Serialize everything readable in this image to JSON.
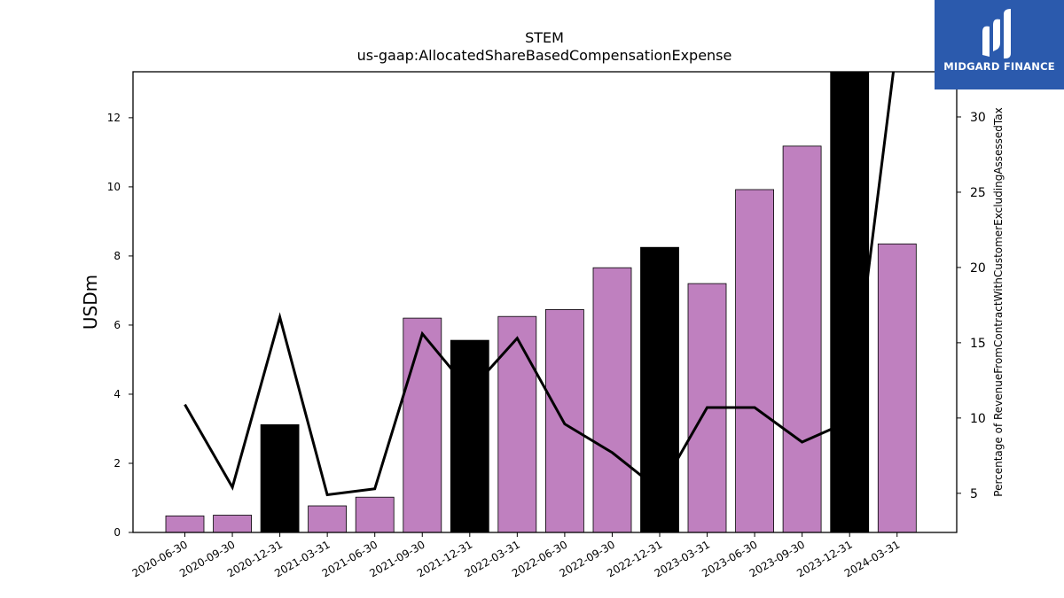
{
  "chart_data": {
    "type": "bar",
    "title": "STEM",
    "subtitle": "us-gaap:AllocatedShareBasedCompensationExpense",
    "ylabel": "USDm",
    "y2label": "Percentage of RevenueFromContractWithCustomerExcludingAssessedTax",
    "categories": [
      "2020-06-30",
      "2020-09-30",
      "2020-12-31",
      "2021-03-31",
      "2021-06-30",
      "2021-09-30",
      "2021-12-31",
      "2022-03-31",
      "2022-06-30",
      "2022-09-30",
      "2022-12-31",
      "2023-03-31",
      "2023-06-30",
      "2023-09-30",
      "2023-12-31",
      "2024-03-31"
    ],
    "series": [
      {
        "values": [
          0.48,
          0.5,
          3.12,
          0.77,
          1.02,
          6.2,
          5.56,
          6.25,
          6.45,
          7.66,
          8.25,
          7.2,
          9.92,
          11.18,
          13.4,
          8.35
        ],
        "colors": [
          "#bf80bf",
          "#bf80bf",
          "#000000",
          "#bf80bf",
          "#bf80bf",
          "#bf80bf",
          "#000000",
          "#bf80bf",
          "#bf80bf",
          "#bf80bf",
          "#000000",
          "#bf80bf",
          "#bf80bf",
          "#bf80bf",
          "#000000",
          "#bf80bf"
        ],
        "axis": "left"
      },
      {
        "type": "line",
        "values": [
          10.9,
          5.4,
          16.7,
          4.9,
          5.3,
          15.6,
          11.8,
          15.3,
          9.6,
          7.7,
          5.2,
          10.7,
          10.7,
          8.4,
          9.8,
          35.0
        ],
        "color": "#000000",
        "axis": "right"
      }
    ],
    "ylim": [
      0,
      13.33
    ],
    "y2lim": [
      2.4,
      33.0
    ],
    "yticks": [
      0,
      2,
      4,
      6,
      8,
      10,
      12
    ],
    "y2ticks": [
      5,
      10,
      15,
      20,
      25,
      30
    ],
    "grid": false
  },
  "logo": {
    "text": "MIDGARD FINANCE",
    "background": "#2b5aad"
  }
}
